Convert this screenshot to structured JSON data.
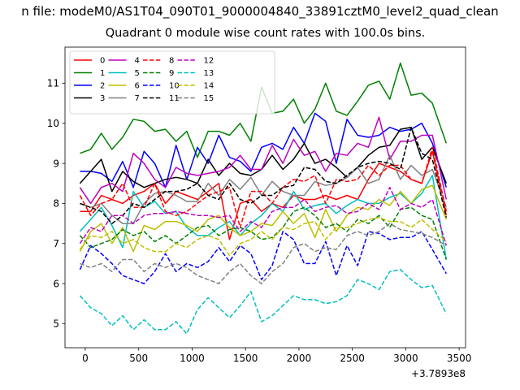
{
  "chart_data": {
    "type": "line",
    "suptitle": "n file: modeM0/AS1T04_090T01_9000004840_33891cztM0_level2_quad_clean",
    "title": "Quadrant 0 module wise count rates with 100.0s bins.",
    "xlabel": "",
    "ylabel": "",
    "x_offset_label": "+3.7893e8",
    "xlim": [
      -190,
      3560
    ],
    "ylim": [
      4.4,
      11.9
    ],
    "xticks": [
      0,
      500,
      1000,
      1500,
      2000,
      2500,
      3000,
      3500
    ],
    "yticks": [
      5,
      6,
      7,
      8,
      9,
      10,
      11
    ],
    "grid": false,
    "legend_position": "top-left",
    "legend_columns": 6,
    "x": [
      -50,
      50,
      150,
      250,
      350,
      450,
      550,
      650,
      750,
      850,
      950,
      1050,
      1150,
      1250,
      1350,
      1450,
      1550,
      1650,
      1750,
      1850,
      1950,
      2050,
      2150,
      2250,
      2350,
      2450,
      2550,
      2650,
      2750,
      2850,
      2950,
      3050,
      3150,
      3250,
      3380
    ],
    "series": [
      {
        "name": "0",
        "color": "#ff0000",
        "dash": "solid",
        "values": [
          7.8,
          7.8,
          8.2,
          8.1,
          8.0,
          8.2,
          8.3,
          8.5,
          8.0,
          8.3,
          8.2,
          8.1,
          8.3,
          8.5,
          7.1,
          8.0,
          8.1,
          7.8,
          8.0,
          7.9,
          8.2,
          8.1,
          8.1,
          8.2,
          8.1,
          8.2,
          8.1,
          8.6,
          9.0,
          8.9,
          8.8,
          8.6,
          8.5,
          9.3,
          7.7
        ]
      },
      {
        "name": "1",
        "color": "#008000",
        "dash": "solid",
        "values": [
          9.25,
          9.35,
          9.75,
          9.35,
          9.65,
          10.1,
          10.05,
          9.8,
          9.85,
          9.55,
          9.8,
          9.15,
          9.8,
          9.8,
          9.7,
          10.0,
          9.55,
          10.9,
          10.25,
          10.3,
          10.6,
          10.0,
          10.35,
          11.0,
          10.3,
          10.2,
          10.55,
          10.95,
          11.05,
          10.6,
          11.5,
          10.7,
          10.75,
          10.5,
          9.5
        ]
      },
      {
        "name": "2",
        "color": "#0000ff",
        "dash": "solid",
        "values": [
          8.8,
          8.8,
          8.75,
          8.55,
          9.05,
          8.4,
          9.3,
          9.0,
          8.4,
          9.45,
          8.6,
          9.4,
          9.0,
          9.7,
          9.15,
          9.05,
          8.8,
          9.4,
          9.5,
          9.35,
          9.9,
          9.5,
          10.25,
          10.05,
          9.0,
          10.1,
          9.7,
          9.65,
          9.7,
          9.9,
          9.8,
          9.85,
          10.0,
          9.5,
          8.4
        ]
      },
      {
        "name": "3",
        "color": "#000000",
        "dash": "solid",
        "values": [
          8.5,
          8.8,
          9.1,
          8.3,
          8.8,
          8.55,
          8.4,
          8.5,
          8.6,
          8.65,
          8.6,
          8.5,
          9.1,
          8.7,
          9.0,
          8.75,
          8.7,
          8.85,
          9.2,
          8.85,
          9.1,
          9.5,
          9.0,
          9.1,
          8.9,
          8.65,
          8.9,
          9.2,
          9.4,
          9.45,
          9.85,
          9.9,
          9.1,
          9.4,
          8.5
        ]
      },
      {
        "name": "4",
        "color": "#bf00bf",
        "dash": "solid",
        "values": [
          8.4,
          8.0,
          8.4,
          8.5,
          8.3,
          9.25,
          9.0,
          8.6,
          8.4,
          8.9,
          8.75,
          8.7,
          8.75,
          8.8,
          8.9,
          9.2,
          8.85,
          8.85,
          9.45,
          9.0,
          9.6,
          9.2,
          9.3,
          8.8,
          9.25,
          9.2,
          9.5,
          9.4,
          10.15,
          9.1,
          9.55,
          9.55,
          9.7,
          9.7,
          8.1
        ]
      },
      {
        "name": "5",
        "color": "#00bfbf",
        "dash": "solid",
        "values": [
          7.3,
          7.6,
          7.9,
          7.45,
          6.9,
          8.3,
          7.9,
          8.05,
          7.75,
          7.8,
          7.4,
          7.2,
          7.2,
          7.4,
          7.55,
          7.2,
          7.5,
          7.7,
          8.0,
          7.8,
          8.3,
          7.85,
          7.95,
          8.0,
          7.75,
          7.95,
          8.1,
          8.0,
          8.0,
          8.15,
          8.25,
          8.0,
          8.25,
          8.7,
          6.6
        ]
      },
      {
        "name": "6",
        "color": "#bfbf00",
        "dash": "solid",
        "values": [
          6.8,
          7.3,
          7.5,
          7.0,
          7.4,
          6.8,
          7.45,
          7.35,
          7.55,
          7.55,
          7.45,
          7.3,
          7.6,
          7.7,
          7.4,
          7.2,
          7.3,
          7.5,
          7.45,
          7.8,
          7.5,
          7.75,
          7.15,
          7.85,
          7.3,
          7.7,
          7.9,
          7.85,
          8.1,
          7.95,
          8.3,
          8.0,
          8.35,
          8.45,
          7.6
        ]
      },
      {
        "name": "7",
        "color": "#808080",
        "dash": "solid",
        "values": [
          8.0,
          7.9,
          8.0,
          7.7,
          7.5,
          7.5,
          8.0,
          8.25,
          8.3,
          8.2,
          8.05,
          8.05,
          8.5,
          8.2,
          8.6,
          8.35,
          8.65,
          8.2,
          8.55,
          8.3,
          8.2,
          8.2,
          8.55,
          8.45,
          8.5,
          8.65,
          8.9,
          8.5,
          8.6,
          9.2,
          8.6,
          8.95,
          8.7,
          8.85,
          7.9
        ]
      },
      {
        "name": "8",
        "color": "#ff0000",
        "dash": "dashed",
        "values": [
          8.2,
          7.7,
          8.0,
          8.1,
          8.5,
          7.9,
          7.9,
          8.5,
          7.8,
          7.7,
          7.8,
          8.0,
          8.2,
          8.3,
          8.4,
          7.4,
          8.3,
          8.3,
          8.0,
          8.4,
          8.6,
          8.55,
          8.7,
          8.0,
          8.6,
          8.55,
          8.6,
          8.95,
          8.7,
          8.95,
          8.95,
          8.6,
          8.5,
          9.4,
          7.8
        ]
      },
      {
        "name": "9",
        "color": "#008000",
        "dash": "dashed",
        "values": [
          7.2,
          6.9,
          7.0,
          7.1,
          7.35,
          7.2,
          7.3,
          7.05,
          7.2,
          7.0,
          7.2,
          7.4,
          7.45,
          7.2,
          7.35,
          7.4,
          7.3,
          7.1,
          7.15,
          7.4,
          7.8,
          7.9,
          7.7,
          7.4,
          7.5,
          7.3,
          7.6,
          7.5,
          7.7,
          7.4,
          7.85,
          7.9,
          7.7,
          7.6,
          6.6
        ]
      },
      {
        "name": "10",
        "color": "#0000ff",
        "dash": "dashed",
        "values": [
          6.35,
          6.95,
          6.75,
          6.5,
          6.2,
          6.1,
          6.0,
          6.3,
          6.75,
          6.3,
          6.5,
          6.4,
          6.55,
          6.9,
          6.55,
          6.95,
          6.75,
          6.1,
          6.45,
          7.3,
          7.1,
          6.5,
          6.5,
          7.05,
          6.2,
          6.95,
          6.45,
          7.3,
          7.25,
          7.1,
          7.15,
          7.15,
          7.3,
          6.85,
          6.25
        ]
      },
      {
        "name": "11",
        "color": "#000000",
        "dash": "dashed",
        "values": [
          8.0,
          7.9,
          7.8,
          7.5,
          7.7,
          8.0,
          7.9,
          8.1,
          8.3,
          8.3,
          8.35,
          8.5,
          8.2,
          8.1,
          8.5,
          8.1,
          8.0,
          8.2,
          8.2,
          8.4,
          8.45,
          8.9,
          8.85,
          8.55,
          8.5,
          8.7,
          8.9,
          9.0,
          9.05,
          9.0,
          8.85,
          9.9,
          9.25,
          9.1,
          7.65
        ]
      },
      {
        "name": "12",
        "color": "#bf00bf",
        "dash": "dashed",
        "values": [
          7.0,
          7.4,
          7.3,
          7.7,
          7.7,
          7.5,
          7.7,
          7.75,
          7.75,
          7.8,
          7.75,
          7.7,
          7.7,
          7.65,
          7.7,
          7.3,
          7.55,
          7.4,
          7.8,
          7.9,
          7.9,
          8.1,
          7.8,
          7.9,
          7.95,
          7.75,
          7.8,
          8.0,
          7.85,
          8.4,
          7.85,
          8.0,
          7.9,
          8.1,
          6.95
        ]
      },
      {
        "name": "13",
        "color": "#00bfbf",
        "dash": "dashed",
        "values": [
          5.7,
          5.4,
          5.25,
          4.95,
          5.2,
          4.85,
          5.1,
          4.85,
          4.85,
          5.05,
          4.75,
          5.35,
          5.65,
          5.4,
          5.15,
          5.45,
          5.8,
          5.05,
          5.2,
          5.45,
          5.7,
          5.6,
          5.6,
          5.5,
          5.55,
          5.7,
          6.1,
          6.0,
          5.85,
          6.3,
          6.35,
          6.1,
          5.9,
          5.95,
          5.25
        ]
      },
      {
        "name": "14",
        "color": "#bfbf00",
        "dash": "dashed",
        "values": [
          6.85,
          7.2,
          7.15,
          7.3,
          7.0,
          7.1,
          6.9,
          6.8,
          6.8,
          7.0,
          6.9,
          7.1,
          7.2,
          7.1,
          6.7,
          7.0,
          7.1,
          7.3,
          7.1,
          7.4,
          7.35,
          7.5,
          7.55,
          7.1,
          7.4,
          7.4,
          7.5,
          7.6,
          7.65,
          7.55,
          7.55,
          7.4,
          7.6,
          7.35,
          7.05
        ]
      },
      {
        "name": "15",
        "color": "#808080",
        "dash": "dashed",
        "values": [
          6.5,
          6.4,
          6.5,
          6.3,
          6.6,
          6.6,
          6.3,
          6.5,
          6.4,
          6.5,
          6.4,
          6.2,
          6.1,
          6.0,
          6.3,
          6.5,
          6.2,
          6.0,
          6.3,
          6.5,
          6.9,
          7.0,
          6.8,
          6.9,
          6.85,
          7.2,
          7.3,
          7.2,
          7.3,
          7.5,
          7.35,
          7.3,
          7.25,
          7.15,
          6.95
        ]
      }
    ]
  }
}
